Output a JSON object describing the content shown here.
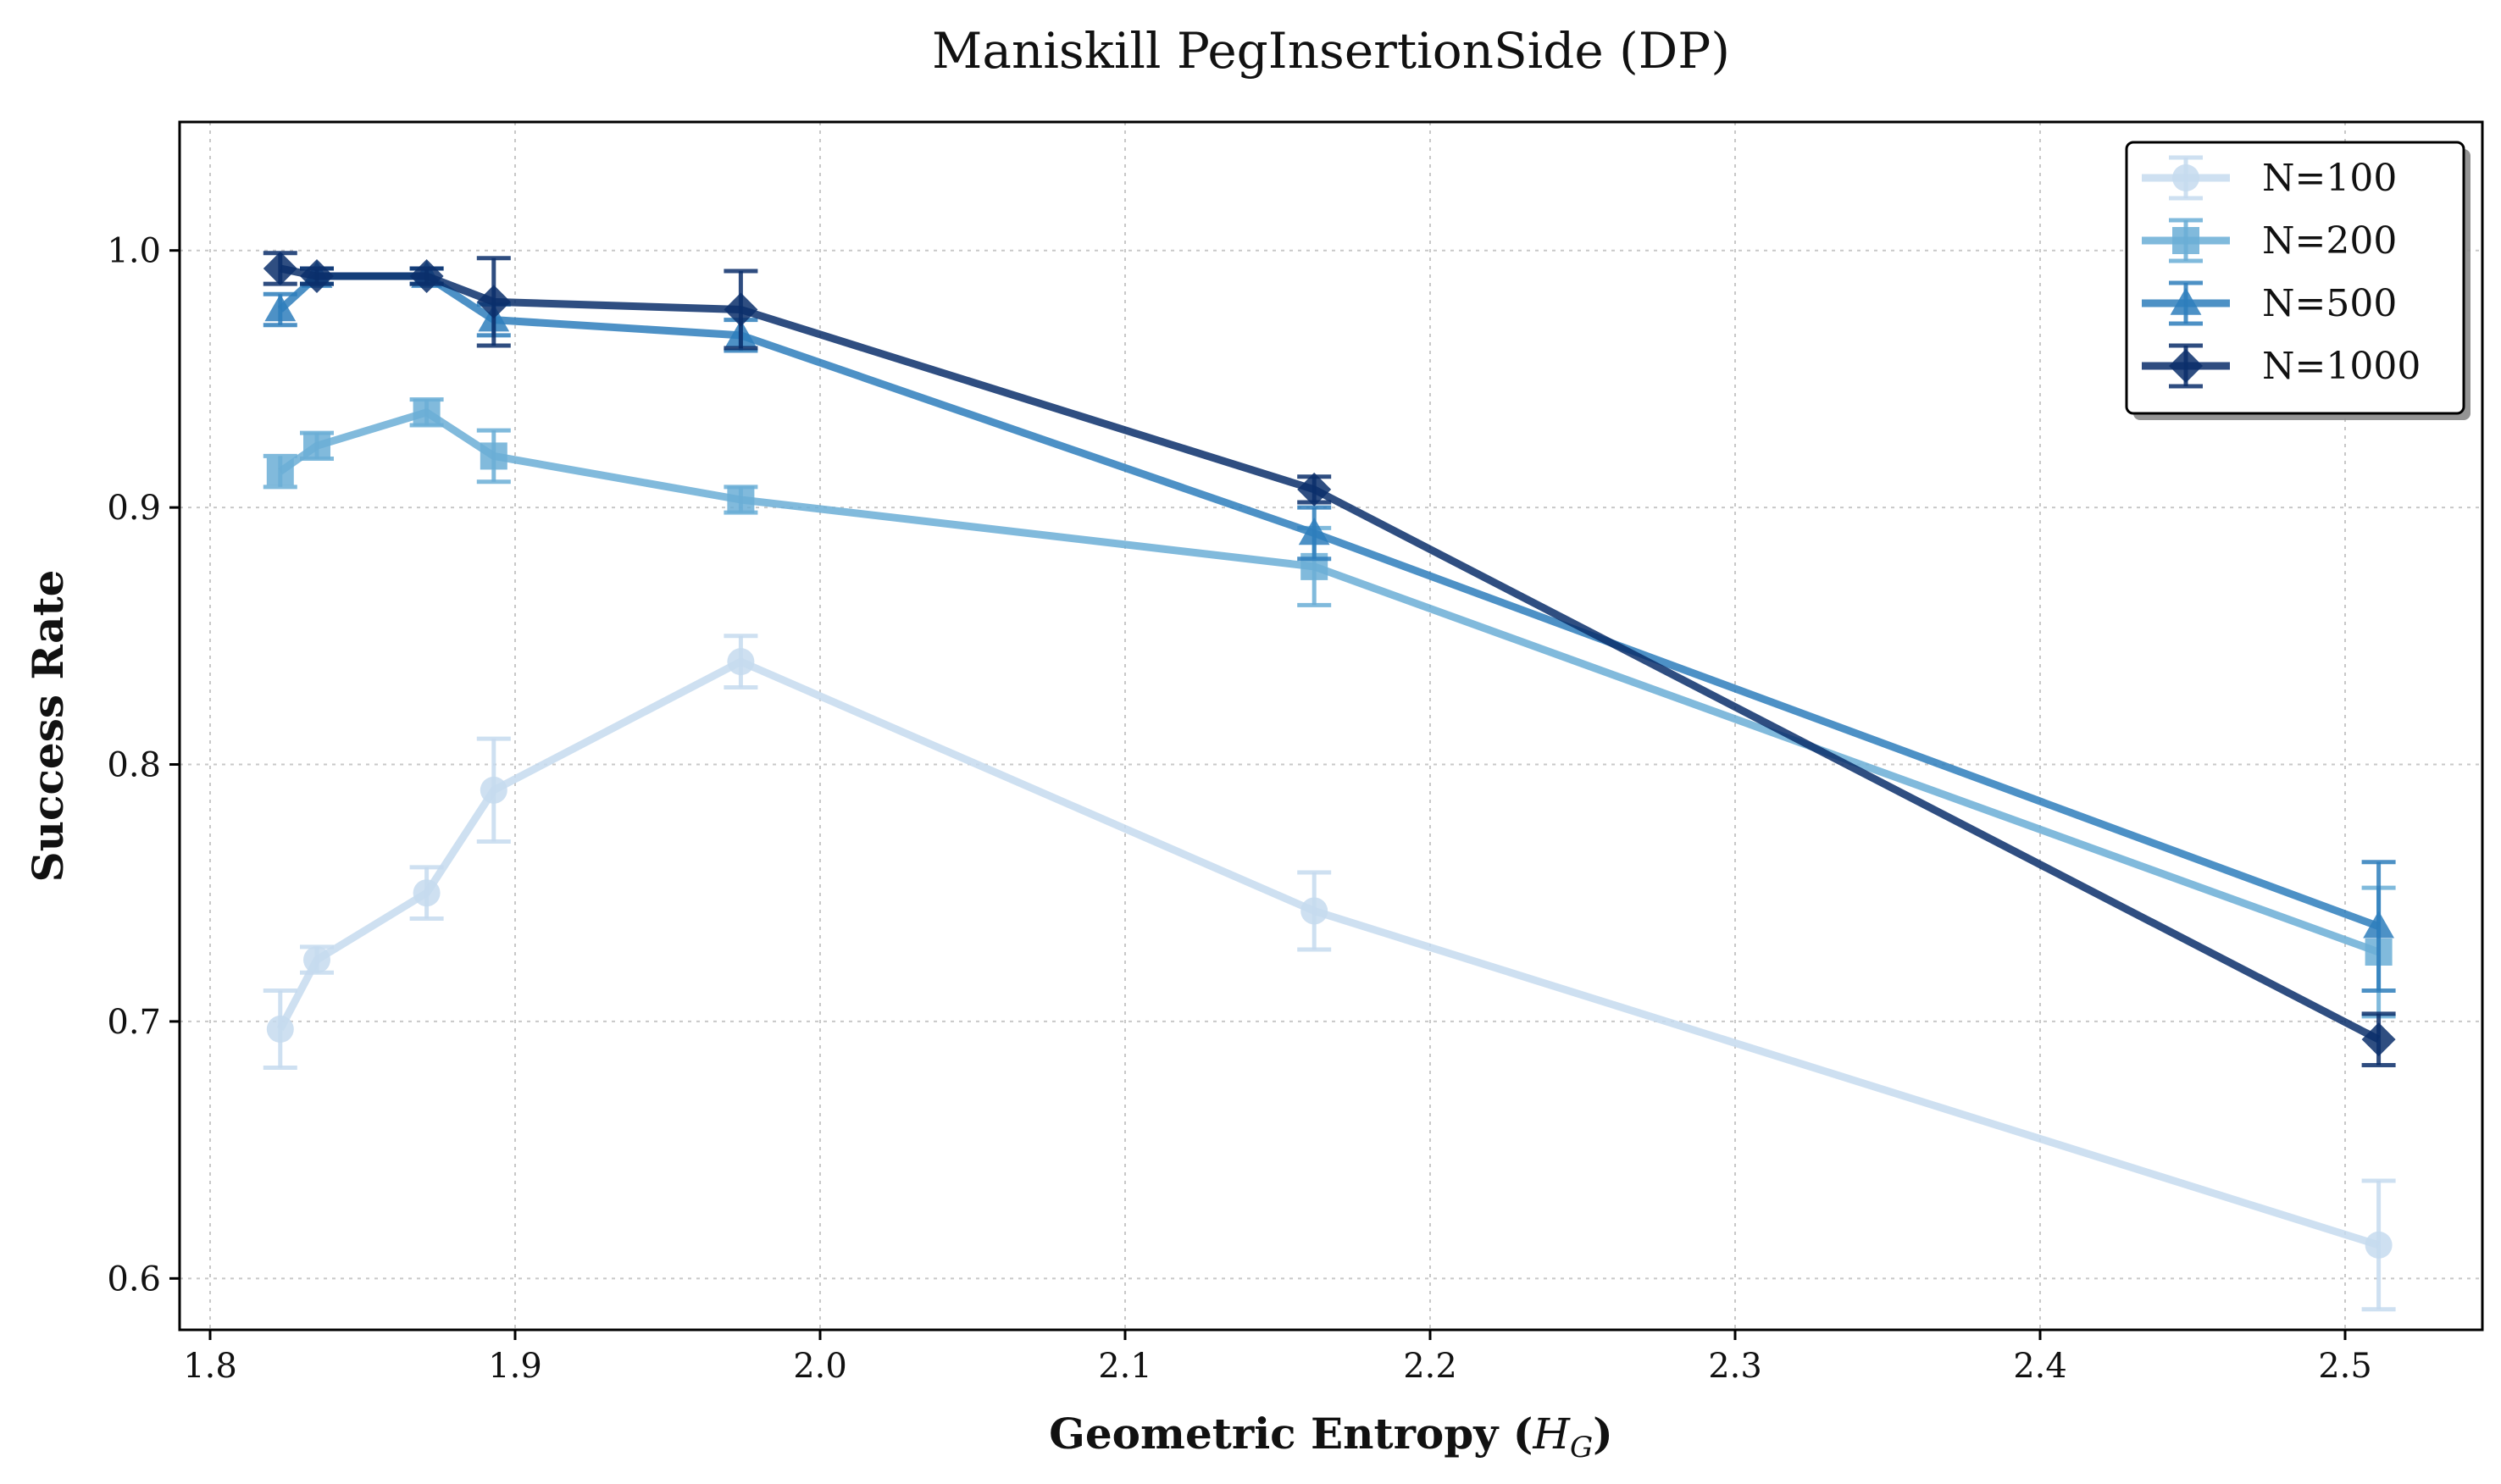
{
  "chart_data": {
    "type": "line",
    "title": "Maniskill PegInsertionSide (DP)",
    "xlabel": "Geometric Entropy (",
    "xlabel_math": "H",
    "xlabel_math_sub": "G",
    "xlabel_end": ")",
    "ylabel": "Success Rate",
    "xlim": [
      1.79,
      2.545
    ],
    "ylim": [
      0.58,
      1.05
    ],
    "xticks": [
      1.8,
      1.9,
      2.0,
      2.1,
      2.2,
      2.3,
      2.4,
      2.5
    ],
    "xtick_labels": [
      "1.8",
      "1.9",
      "2.0",
      "2.1",
      "2.2",
      "2.3",
      "2.4",
      "2.5"
    ],
    "yticks": [
      0.6,
      0.7,
      0.8,
      0.9,
      1.0
    ],
    "ytick_labels": [
      "0.6",
      "0.7",
      "0.8",
      "0.9",
      "1.0"
    ],
    "grid": true,
    "legend_position": "top-right",
    "x": [
      1.823,
      1.835,
      1.871,
      1.893,
      1.974,
      2.162,
      2.511
    ],
    "series": [
      {
        "name": "N=100",
        "color": "#c6dbef",
        "marker": "circle",
        "values": [
          0.697,
          0.724,
          0.75,
          0.79,
          0.84,
          0.743,
          0.613
        ],
        "errors": [
          0.015,
          0.005,
          0.01,
          0.02,
          0.01,
          0.015,
          0.025
        ]
      },
      {
        "name": "N=200",
        "color": "#6baed6",
        "marker": "square",
        "values": [
          0.914,
          0.924,
          0.937,
          0.92,
          0.903,
          0.877,
          0.727
        ],
        "errors": [
          0.006,
          0.005,
          0.005,
          0.01,
          0.005,
          0.015,
          0.025
        ]
      },
      {
        "name": "N=500",
        "color": "#2e7ebc",
        "marker": "triangle",
        "values": [
          0.977,
          0.99,
          0.99,
          0.973,
          0.967,
          0.89,
          0.737
        ],
        "errors": [
          0.006,
          0.003,
          0.003,
          0.006,
          0.006,
          0.01,
          0.025
        ]
      },
      {
        "name": "N=1000",
        "color": "#0b2f6b",
        "marker": "diamond",
        "values": [
          0.993,
          0.99,
          0.99,
          0.98,
          0.977,
          0.907,
          0.693
        ],
        "errors": [
          0.006,
          0.003,
          0.003,
          0.017,
          0.015,
          0.005,
          0.01
        ]
      }
    ]
  }
}
